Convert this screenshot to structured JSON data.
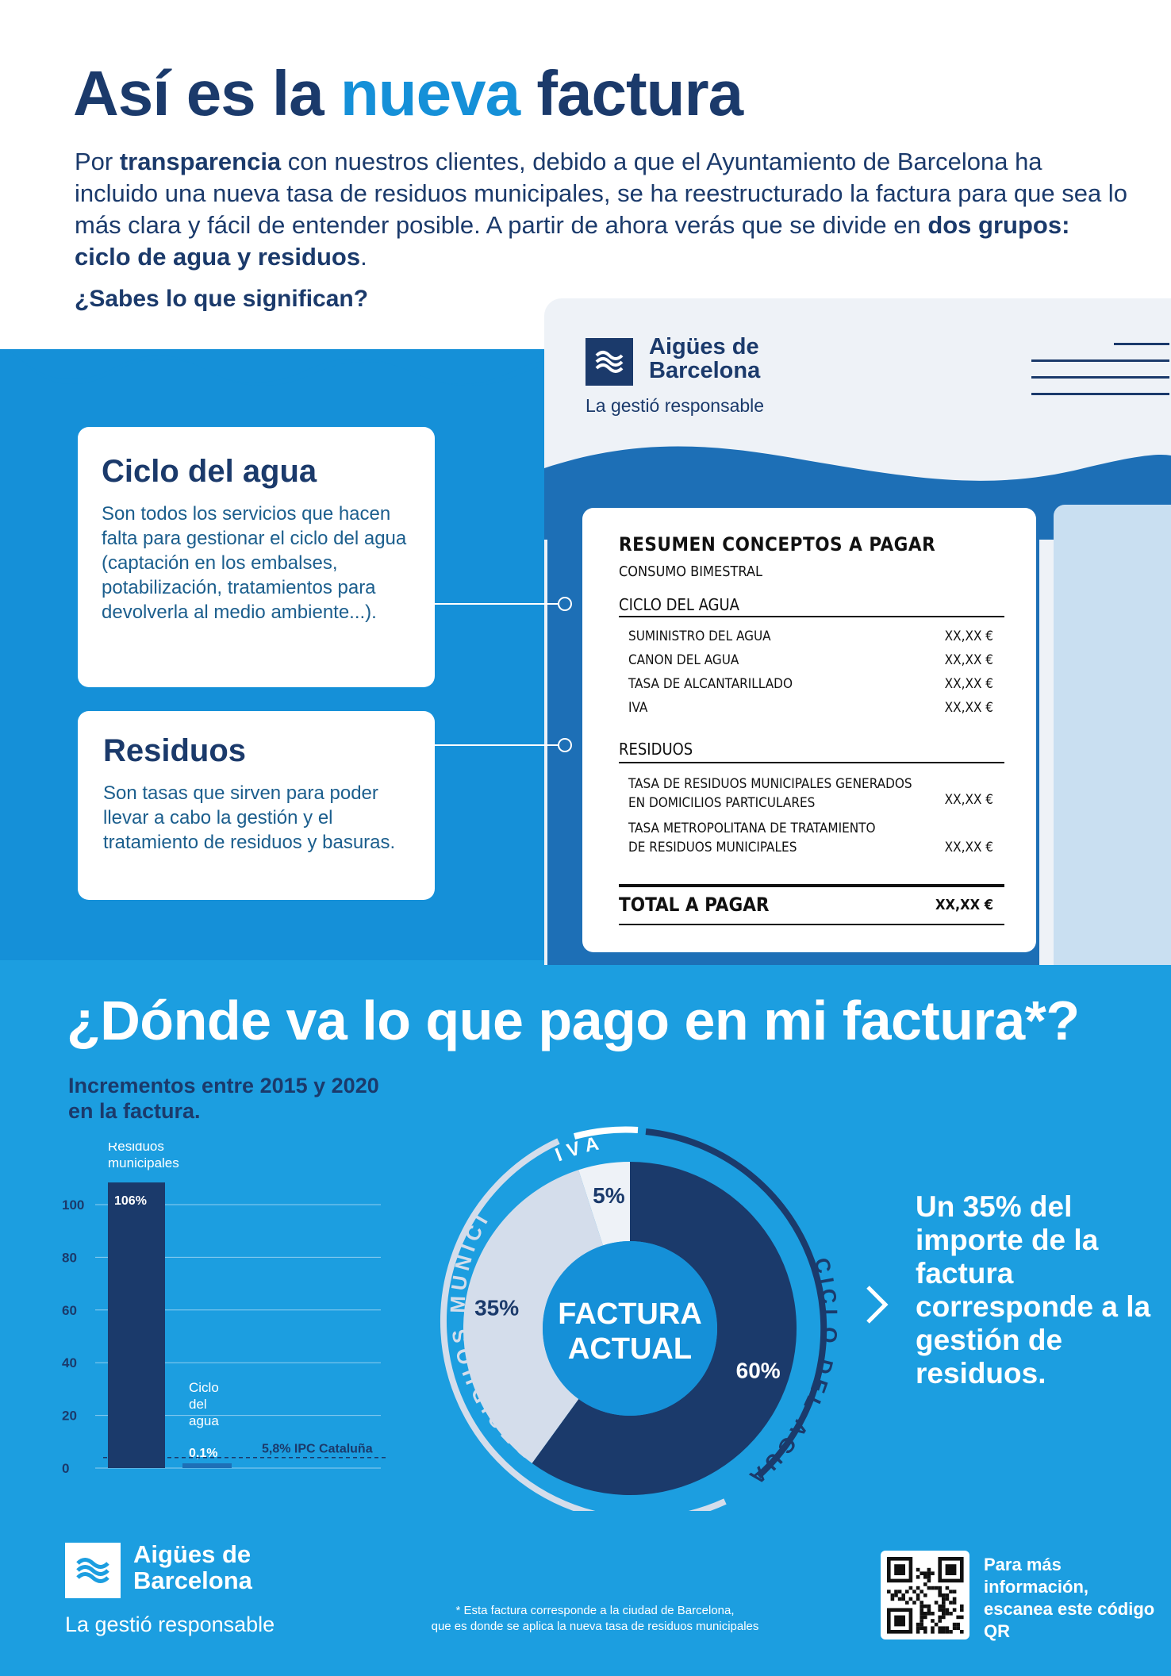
{
  "header": {
    "title_part1": "Así es la",
    "title_highlight": "nueva",
    "title_part2": "factura",
    "intro_1": "Por ",
    "intro_bold1": "transparencia",
    "intro_2": " con nuestros clientes, debido a que el Ayuntamiento de Barcelona ha incluido una nueva tasa de residuos municipales, se ha reestructurado la factura para que sea lo más clara y fácil de entender posible. A partir de ahora verás que se divide en ",
    "intro_bold2": "dos grupos: ciclo de agua y residuos",
    "intro_3": ".",
    "question": "¿Sabes lo que significan?"
  },
  "brand": {
    "name_line1": "Aigües de",
    "name_line2": "Barcelona",
    "tagline": "La gestió responsable",
    "logo_icon": "aigues-logo-icon",
    "color_dark": "#1b3a6b",
    "color_blue": "#1590d8"
  },
  "cards": [
    {
      "title": "Ciclo del agua",
      "text": "Son todos los servicios que hacen falta para gestionar el ciclo del agua (captación en los embalses, potabilización, tratamientos para devolverla al medio ambiente...)."
    },
    {
      "title": "Residuos",
      "text": "Son tasas que sirven para poder llevar a cabo la gestión y el tratamiento de residuos y basuras."
    }
  ],
  "invoice": {
    "title": "RESUMEN CONCEPTOS A PAGAR",
    "subtitle": "CONSUMO BIMESTRAL",
    "section1": "CICLO DEL AGUA",
    "rows1": [
      {
        "label": "SUMINISTRO DEL AGUA",
        "value": "XX,XX €"
      },
      {
        "label": "CANON DEL AGUA",
        "value": "XX,XX €"
      },
      {
        "label": "TASA DE ALCANTARILLADO",
        "value": "XX,XX €"
      },
      {
        "label": "IVA",
        "value": "XX,XX €"
      }
    ],
    "section2": "RESIDUOS",
    "rows2": [
      {
        "label_1": "TASA DE RESIDUOS MUNICIPALES GENERADOS",
        "label_2": "EN DOMICILIOS PARTICULARES",
        "value": "XX,XX €"
      },
      {
        "label_1": "TASA METROPOLITANA DE TRATAMIENTO",
        "label_2": "DE RESIDUOS MUNICIPALES",
        "value": "XX,XX €"
      }
    ],
    "total_label": "TOTAL A PAGAR",
    "total_value": "XX,XX €"
  },
  "section2": {
    "title": "¿Dónde va lo que pago en mi factura*?",
    "chart_subtitle": "Incrementos entre 2015 y 2020 en la factura.",
    "callout": "Un 35% del importe de la factura corresponde a la gestión de residuos.",
    "chevron_icon": "chevron-right-icon"
  },
  "chart_data": [
    {
      "type": "bar",
      "title": "Incrementos entre 2015 y 2020 en la factura.",
      "categories": [
        "Residuos municipales",
        "Ciclo del agua"
      ],
      "category_labels": [
        "Residuos\nmunicipales",
        "Ciclo\ndel\nagua"
      ],
      "values": [
        106,
        0.1
      ],
      "value_labels": [
        "106%",
        "0,1%"
      ],
      "yticks": [
        0,
        20,
        40,
        60,
        80,
        100
      ],
      "ylim": [
        0,
        100
      ],
      "reference_line": {
        "label": "5,8% IPC Cataluña",
        "value": 5.8
      },
      "grid": true
    },
    {
      "type": "pie",
      "center_label": "FACTURA ACTUAL",
      "slices": [
        {
          "name": "CICLO DEL AGUA",
          "value": 60,
          "label": "60%",
          "color": "#1b3a6b"
        },
        {
          "name": "RESIDUOS MUNICIPALES",
          "value": 35,
          "label": "35%",
          "color": "#d4ddeb"
        },
        {
          "name": "IVA",
          "value": 5,
          "label": "5%",
          "color": "#eef2f7"
        }
      ]
    }
  ],
  "footer": {
    "note_line1": "* Esta factura corresponde a la ciudad de Barcelona,",
    "note_line2": "que es donde se aplica la nueva tasa de residuos municipales",
    "qr_text": "Para más información, escanea este código QR"
  }
}
